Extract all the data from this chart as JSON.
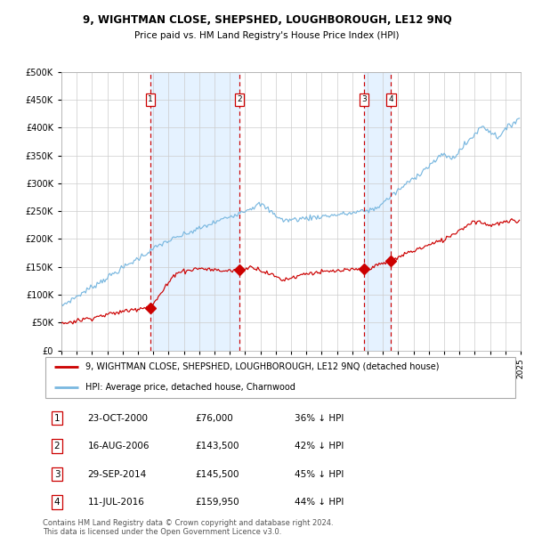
{
  "title": "9, WIGHTMAN CLOSE, SHEPSHED, LOUGHBOROUGH, LE12 9NQ",
  "subtitle": "Price paid vs. HM Land Registry's House Price Index (HPI)",
  "hpi_color": "#7ab8e0",
  "price_color": "#cc0000",
  "bg_fill_color": "#ddeeff",
  "transactions": [
    {
      "num": 1,
      "date": "23-OCT-2000",
      "year": 2000.81,
      "price": 76000,
      "pct": "36% ↓ HPI"
    },
    {
      "num": 2,
      "date": "16-AUG-2006",
      "year": 2006.62,
      "price": 143500,
      "pct": "42% ↓ HPI"
    },
    {
      "num": 3,
      "date": "29-SEP-2014",
      "year": 2014.75,
      "price": 145500,
      "pct": "45% ↓ HPI"
    },
    {
      "num": 4,
      "date": "11-JUL-2016",
      "year": 2016.54,
      "price": 159950,
      "pct": "44% ↓ HPI"
    }
  ],
  "legend_property": "9, WIGHTMAN CLOSE, SHEPSHED, LOUGHBOROUGH, LE12 9NQ (detached house)",
  "legend_hpi": "HPI: Average price, detached house, Charnwood",
  "footer": "Contains HM Land Registry data © Crown copyright and database right 2024.\nThis data is licensed under the Open Government Licence v3.0.",
  "xmin": 1995,
  "xmax": 2025,
  "ymin": 0,
  "ymax": 500000
}
